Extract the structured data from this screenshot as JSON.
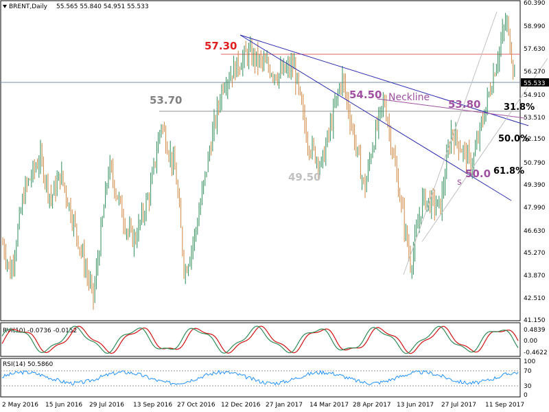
{
  "header": {
    "symbol": "BRENT,Daily",
    "ohlc": "55.565 55.840 54.951 55.533"
  },
  "price_axis": {
    "ticks": [
      "60.390",
      "58.990",
      "57.630",
      "56.270",
      "54.910",
      "53.510",
      "52.150",
      "50.790",
      "49.390",
      "47.990",
      "46.630",
      "45.270",
      "43.870",
      "42.510",
      "41.150"
    ],
    "current": "55.533"
  },
  "date_axis": {
    "ticks": [
      "2 May 2016",
      "15 Jun 2016",
      "29 Jul 2016",
      "13 Sep 2016",
      "27 Oct 2016",
      "12 Dec 2016",
      "27 Jan 2017",
      "14 Mar 2017",
      "28 Apr 2017",
      "13 Jun 2017",
      "27 Jul 2017",
      "11 Sep 2017"
    ]
  },
  "annotations": {
    "a5730": "57.30",
    "a5370": "53.70",
    "a4950": "49.50",
    "a5450": "54.50",
    "neckline": "Neckline",
    "a5380": "53.80",
    "a318": "31.8%",
    "a500pct": "50.0%",
    "a500": "50.0",
    "a618": "61.8%",
    "s_label": "s"
  },
  "rvi": {
    "label": "RVI(10) -0.0736 -0.0152",
    "ticks": [
      "0.4839",
      "0.00",
      "-0.4622"
    ]
  },
  "rsi": {
    "label": "RSI(14) 50.5860",
    "ticks": [
      "100",
      "70",
      "30",
      "0"
    ]
  },
  "colors": {
    "bull": "#2e8b57",
    "bear": "#cd853f",
    "resistance": "#e06060",
    "support": "#808080",
    "trend": "#2a2ab0",
    "neckline": "#a050a0",
    "rvi_main": "#2e8b57",
    "rvi_signal": "#d01010",
    "rsi": "#1e90ff"
  },
  "chart_data": {
    "type": "candlestick",
    "title": "BRENT,Daily",
    "x_range": [
      "2 May 2016",
      "6 Oct 2017"
    ],
    "ylim": [
      41.15,
      60.39
    ],
    "price_path": [
      [
        "2 May 2016",
        45.8
      ],
      [
        "10 May 2016",
        44.0
      ],
      [
        "24 May 2016",
        49.0
      ],
      [
        "9 Jun 2016",
        51.0
      ],
      [
        "20 Jun 2016",
        48.5
      ],
      [
        "30 Jun 2016",
        50.0
      ],
      [
        "18 Jul 2016",
        46.0
      ],
      [
        "2 Aug 2016",
        42.5
      ],
      [
        "18 Aug 2016",
        50.5
      ],
      [
        "6 Sep 2016",
        46.5
      ],
      [
        "13 Sep 2016",
        46.0
      ],
      [
        "29 Sep 2016",
        49.0
      ],
      [
        "10 Oct 2016",
        53.1
      ],
      [
        "25 Oct 2016",
        50.0
      ],
      [
        "3 Nov 2016",
        44.0
      ],
      [
        "14 Nov 2016",
        46.5
      ],
      [
        "30 Nov 2016",
        52.0
      ],
      [
        "12 Dec 2016",
        55.5
      ],
      [
        "6 Jan 2017",
        57.3
      ],
      [
        "6 Feb 2017",
        56.0
      ],
      [
        "22 Feb 2017",
        56.5
      ],
      [
        "8 Mar 2017",
        52.0
      ],
      [
        "22 Mar 2017",
        50.5
      ],
      [
        "12 Apr 2017",
        55.9
      ],
      [
        "5 May 2017",
        49.0
      ],
      [
        "12 May 2017",
        51.5
      ],
      [
        "25 May 2017",
        54.5
      ],
      [
        "21 Jun 2017",
        44.5
      ],
      [
        "3 Jul 2017",
        48.5
      ],
      [
        "21 Jul 2017",
        48.0
      ],
      [
        "1 Aug 2017",
        52.6
      ],
      [
        "22 Aug 2017",
        50.5
      ],
      [
        "7 Sep 2017",
        54.5
      ],
      [
        "26 Sep 2017",
        59.3
      ],
      [
        "6 Oct 2017",
        55.5
      ]
    ],
    "levels": [
      {
        "label": "57.30",
        "value": 57.3
      },
      {
        "label": "53.70",
        "value": 53.7
      },
      {
        "label": "current",
        "value": 55.533
      }
    ],
    "indicators": [
      {
        "name": "RVI(10)",
        "values": [
          -0.0736,
          -0.0152
        ],
        "ylim": [
          -0.4622,
          0.4839
        ]
      },
      {
        "name": "RSI(14)",
        "value": 50.586,
        "levels": [
          30,
          70
        ],
        "ylim": [
          0,
          100
        ]
      }
    ]
  }
}
